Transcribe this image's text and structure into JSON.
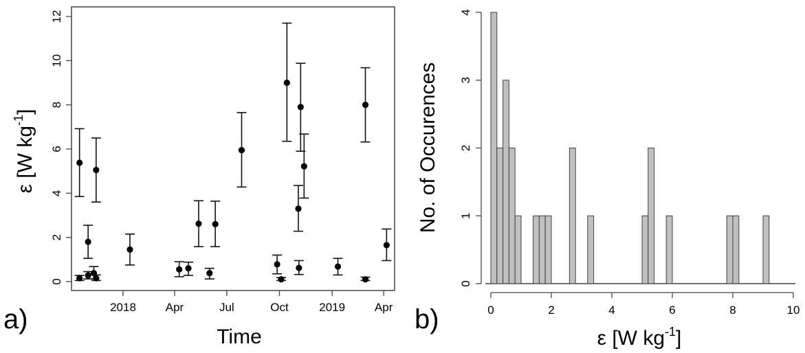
{
  "chart_data": [
    {
      "type": "scatter",
      "panel_label": "a)",
      "xlabel": "Time",
      "ylabel": "ε [W kg",
      "ylabel_superscript": "-1",
      "ylabel_close": "]",
      "ylim": [
        0,
        12
      ],
      "y_ticks": [
        "0",
        "2",
        "4",
        "6",
        "8",
        "10",
        "12"
      ],
      "x_ticks": [
        {
          "date": "2018-01-01",
          "label": "2018"
        },
        {
          "date": "2018-04-01",
          "label": "Apr"
        },
        {
          "date": "2018-07-01",
          "label": "Jul"
        },
        {
          "date": "2018-10-01",
          "label": "Oct"
        },
        {
          "date": "2019-01-01",
          "label": "2019"
        },
        {
          "date": "2019-04-01",
          "label": "Apr"
        }
      ],
      "xlim": [
        "2017-10-03",
        "2019-04-20"
      ],
      "error_bars": true,
      "grid": false,
      "points": [
        {
          "x": "2017-10-17",
          "y": 5.38,
          "low": 3.85,
          "high": 6.92
        },
        {
          "x": "2017-10-17",
          "y": 0.15,
          "low": 0.05,
          "high": 0.28
        },
        {
          "x": "2017-11-01",
          "y": 1.8,
          "low": 1.05,
          "high": 2.55
        },
        {
          "x": "2017-11-01",
          "y": 0.28,
          "low": 0.12,
          "high": 0.45
        },
        {
          "x": "2017-11-11",
          "y": 0.38,
          "low": 0.12,
          "high": 0.68
        },
        {
          "x": "2017-11-15",
          "y": 5.05,
          "low": 3.6,
          "high": 6.5
        },
        {
          "x": "2017-11-15",
          "y": 0.15,
          "low": 0.05,
          "high": 0.3
        },
        {
          "x": "2018-01-13",
          "y": 1.45,
          "low": 0.75,
          "high": 2.15
        },
        {
          "x": "2018-04-09",
          "y": 0.55,
          "low": 0.22,
          "high": 0.9
        },
        {
          "x": "2018-04-25",
          "y": 0.6,
          "low": 0.28,
          "high": 0.88
        },
        {
          "x": "2018-05-13",
          "y": 2.62,
          "low": 1.58,
          "high": 3.66
        },
        {
          "x": "2018-06-01",
          "y": 0.38,
          "low": 0.12,
          "high": 0.6
        },
        {
          "x": "2018-06-11",
          "y": 2.6,
          "low": 1.58,
          "high": 3.64
        },
        {
          "x": "2018-07-27",
          "y": 5.95,
          "low": 4.28,
          "high": 7.65
        },
        {
          "x": "2018-09-27",
          "y": 0.78,
          "low": 0.35,
          "high": 1.2
        },
        {
          "x": "2018-10-04",
          "y": 0.1,
          "low": 0.05,
          "high": 0.18
        },
        {
          "x": "2018-10-14",
          "y": 9.0,
          "low": 6.35,
          "high": 11.7
        },
        {
          "x": "2018-11-03",
          "y": 3.3,
          "low": 2.28,
          "high": 4.35
        },
        {
          "x": "2018-11-04",
          "y": 0.62,
          "low": 0.32,
          "high": 0.95
        },
        {
          "x": "2018-11-07",
          "y": 7.9,
          "low": 5.9,
          "high": 9.88
        },
        {
          "x": "2018-11-13",
          "y": 5.22,
          "low": 3.78,
          "high": 6.68
        },
        {
          "x": "2019-01-11",
          "y": 0.68,
          "low": 0.3,
          "high": 1.05
        },
        {
          "x": "2019-02-28",
          "y": 0.1,
          "low": 0.05,
          "high": 0.2
        },
        {
          "x": "2019-02-28",
          "y": 8.0,
          "low": 6.32,
          "high": 9.68
        },
        {
          "x": "2019-04-06",
          "y": 1.65,
          "low": 0.95,
          "high": 2.38
        }
      ]
    },
    {
      "type": "bar",
      "panel_label": "b)",
      "xlabel": "ε [W kg",
      "xlabel_superscript": "-1",
      "xlabel_close": "]",
      "ylabel": "No. of Occurences",
      "xlim": [
        0,
        10
      ],
      "ylim": [
        0,
        4
      ],
      "x_ticks": [
        "0",
        "2",
        "4",
        "6",
        "8",
        "10"
      ],
      "y_ticks": [
        "0",
        "1",
        "2",
        "3",
        "4"
      ],
      "bin_width": 0.2,
      "bins": [
        {
          "x0": 0.0,
          "count": 4
        },
        {
          "x0": 0.2,
          "count": 2
        },
        {
          "x0": 0.4,
          "count": 3
        },
        {
          "x0": 0.6,
          "count": 2
        },
        {
          "x0": 0.8,
          "count": 1
        },
        {
          "x0": 1.4,
          "count": 1
        },
        {
          "x0": 1.6,
          "count": 1
        },
        {
          "x0": 1.8,
          "count": 1
        },
        {
          "x0": 2.6,
          "count": 2
        },
        {
          "x0": 3.2,
          "count": 1
        },
        {
          "x0": 5.0,
          "count": 1
        },
        {
          "x0": 5.2,
          "count": 2
        },
        {
          "x0": 5.8,
          "count": 1
        },
        {
          "x0": 7.8,
          "count": 1
        },
        {
          "x0": 8.0,
          "count": 1
        },
        {
          "x0": 9.0,
          "count": 1
        }
      ],
      "bar_fill": "#c0c0c0",
      "bar_stroke": "#404040"
    }
  ]
}
